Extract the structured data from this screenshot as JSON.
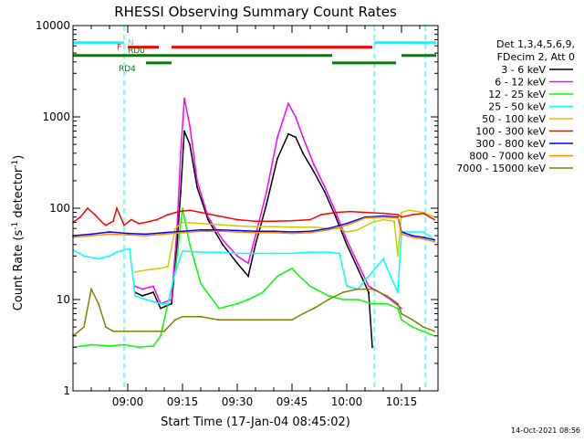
{
  "chart_data": {
    "type": "line",
    "title": "RHESSI Observing Summary Count Rates",
    "xlabel": "Start Time (17-Jan-04 08:45:02)",
    "ylabel": "Count Rate (s⁻¹ detector⁻¹)",
    "ylabel_main": "Count Rate (s",
    "ylabel_sup1": "-1",
    "ylabel_mid": " detector",
    "ylabel_sup2": "-1",
    "ylabel_end": ")",
    "yscale": "log",
    "ylim": [
      1,
      10000
    ],
    "xlim_minutes": [
      0,
      100
    ],
    "x_ticks": [
      {
        "minute": 15,
        "label": "09:00"
      },
      {
        "minute": 30,
        "label": "09:15"
      },
      {
        "minute": 45,
        "label": "09:30"
      },
      {
        "minute": 60,
        "label": "09:45"
      },
      {
        "minute": 75,
        "label": "10:00"
      },
      {
        "minute": 90,
        "label": "10:15"
      }
    ],
    "y_ticks": [
      {
        "value": 1,
        "label": "1"
      },
      {
        "value": 10,
        "label": "10"
      },
      {
        "value": 100,
        "label": "100"
      },
      {
        "value": 1000,
        "label": "1000"
      },
      {
        "value": 10000,
        "label": "10000"
      }
    ],
    "legend_header": [
      "Det 1,3,4,5,6,9,",
      "FDecim 2, Att 0"
    ],
    "timestamp": "14-Oct-2021 08:56",
    "series": [
      {
        "name": "3 - 6 keV",
        "color": "#000000",
        "x": [
          0,
          12,
          15.5,
          17,
          19,
          22,
          24,
          27,
          28.5,
          29.5,
          30.5,
          32,
          34,
          37,
          41,
          45,
          48,
          50,
          53,
          56,
          59,
          61,
          63,
          66,
          69,
          72,
          75,
          78,
          81,
          82,
          86,
          90,
          94,
          99
        ],
        "y": [
          null,
          null,
          null,
          12,
          11,
          12,
          8,
          9,
          40,
          150,
          700,
          500,
          170,
          75,
          40,
          25,
          18,
          40,
          110,
          350,
          650,
          600,
          400,
          250,
          150,
          80,
          40,
          22,
          12,
          3,
          null,
          null,
          null,
          null
        ]
      },
      {
        "name": "6 - 12 keV",
        "color": "#ff00ff",
        "x": [
          0,
          12,
          15.5,
          17,
          19,
          22,
          24,
          27,
          28.5,
          29.5,
          30.5,
          32,
          34,
          37,
          41,
          45,
          48,
          50,
          53,
          56,
          59,
          61,
          63,
          66,
          69,
          72,
          75,
          78,
          81,
          84,
          87,
          90,
          94,
          99
        ],
        "y": [
          null,
          null,
          null,
          14,
          13,
          14,
          9,
          10,
          60,
          400,
          1600,
          800,
          200,
          80,
          45,
          30,
          25,
          50,
          150,
          600,
          1400,
          1000,
          600,
          300,
          170,
          90,
          45,
          25,
          14,
          12,
          10,
          8,
          null,
          null
        ]
      },
      {
        "name": "12 - 25 keV",
        "color": "#00ff00",
        "x": [
          0,
          5,
          10,
          14,
          18,
          22,
          24,
          28,
          30,
          32,
          35,
          40,
          45,
          48,
          52,
          56,
          60,
          62,
          65,
          70,
          74,
          78,
          82,
          86,
          89,
          90,
          93,
          99
        ],
        "y": [
          3,
          3.2,
          3.1,
          3.2,
          3.0,
          3.1,
          4,
          20,
          100,
          40,
          15,
          8,
          9,
          10,
          12,
          18,
          22,
          18,
          14,
          11,
          10,
          10,
          9,
          9,
          8,
          6,
          5,
          4
        ]
      },
      {
        "name": "25 - 50 keV",
        "color": "#00ffff",
        "x": [
          0,
          3,
          7,
          10,
          12,
          14,
          15.5,
          17,
          20,
          24,
          26,
          28,
          30,
          35,
          40,
          45,
          50,
          55,
          60,
          65,
          70,
          73,
          75,
          78,
          82,
          85,
          87,
          89,
          90,
          93,
          96,
          99
        ],
        "y": [
          35,
          30,
          28,
          30,
          33,
          35,
          36,
          11,
          10,
          9,
          9,
          20,
          34,
          33,
          33,
          32,
          32,
          32,
          32,
          33,
          33,
          32,
          14,
          13,
          20,
          28,
          18,
          12,
          55,
          55,
          55,
          45
        ]
      },
      {
        "name": "50 - 100 keV",
        "color": "#cccc00",
        "x": [
          0,
          12,
          15.5,
          17,
          20,
          24,
          26,
          28,
          30,
          35,
          40,
          45,
          50,
          55,
          60,
          63,
          66,
          70,
          73,
          75,
          78,
          82,
          85,
          88,
          89,
          90,
          92,
          96,
          99
        ],
        "y": [
          null,
          null,
          null,
          20,
          21,
          22,
          23,
          60,
          70,
          68,
          66,
          64,
          63,
          63,
          62,
          62,
          62,
          60,
          60,
          55,
          58,
          70,
          75,
          72,
          30,
          90,
          95,
          90,
          80
        ]
      },
      {
        "name": "100 - 300 keV",
        "color": "#ff0000",
        "x": [
          0,
          2,
          4,
          6,
          8,
          9,
          11,
          12,
          14,
          16,
          18,
          20,
          23,
          26,
          29,
          32,
          35,
          40,
          45,
          50,
          55,
          60,
          65,
          68,
          72,
          76,
          80,
          85,
          89,
          90,
          93,
          96,
          99
        ],
        "y": [
          70,
          80,
          100,
          85,
          70,
          65,
          72,
          100,
          65,
          75,
          68,
          70,
          75,
          85,
          92,
          95,
          90,
          82,
          75,
          72,
          72,
          73,
          75,
          85,
          90,
          92,
          90,
          88,
          85,
          80,
          85,
          88,
          75
        ]
      },
      {
        "name": "300 - 800 keV",
        "color": "#0000ff",
        "x": [
          0,
          5,
          10,
          15,
          20,
          25,
          30,
          35,
          40,
          45,
          50,
          55,
          60,
          65,
          70,
          75,
          80,
          85,
          89,
          90,
          93,
          96,
          99
        ],
        "y": [
          50,
          52,
          55,
          53,
          52,
          54,
          56,
          58,
          58,
          57,
          56,
          56,
          55,
          56,
          60,
          68,
          80,
          82,
          80,
          55,
          50,
          48,
          45
        ]
      },
      {
        "name": "800 - 7000 keV",
        "color": "#ff8c00",
        "x": [
          0,
          5,
          10,
          15,
          20,
          25,
          30,
          35,
          40,
          45,
          50,
          55,
          60,
          65,
          70,
          75,
          80,
          85,
          89,
          90,
          93,
          96,
          99
        ],
        "y": [
          48,
          50,
          52,
          51,
          50,
          52,
          54,
          56,
          56,
          55,
          54,
          54,
          53,
          54,
          58,
          65,
          78,
          80,
          78,
          52,
          48,
          46,
          43
        ]
      },
      {
        "name": "7000 - 15000 keV",
        "color": "#808000",
        "x": [
          0,
          3,
          5,
          7,
          9,
          11,
          13,
          15,
          20,
          25,
          28,
          30,
          35,
          40,
          45,
          50,
          55,
          60,
          63,
          66,
          70,
          74,
          78,
          82,
          86,
          89,
          90,
          93,
          96,
          99
        ],
        "y": [
          4,
          5,
          13,
          9,
          5,
          4.5,
          4.5,
          4.5,
          4.5,
          4.5,
          6,
          6.5,
          6.5,
          6,
          6,
          6,
          6,
          6,
          7,
          8,
          10,
          12,
          13,
          13,
          11,
          9,
          7,
          6,
          5,
          4.5
        ]
      }
    ],
    "annotations": {
      "flags": [
        {
          "label": "N",
          "color": "#00ffff",
          "y": 6500,
          "segments": [
            [
              0,
              14
            ],
            [
              82.5,
              99.5
            ]
          ]
        },
        {
          "label": "F",
          "color": "#ff0000",
          "y": 5800,
          "segments": [
            [
              15,
              23.5
            ],
            [
              27,
              82
            ]
          ]
        },
        {
          "label": "RD0",
          "color": "#008000",
          "y": 4700,
          "segments": [
            [
              0,
              71
            ],
            [
              90,
              99.5
            ]
          ]
        },
        {
          "label": "RD4",
          "color": "#008000",
          "y": 3900,
          "segments": [
            [
              20,
              27
            ],
            [
              71,
              88.5
            ]
          ]
        }
      ],
      "saa_lines_minutes": [
        14,
        82.5,
        96.5
      ]
    }
  }
}
